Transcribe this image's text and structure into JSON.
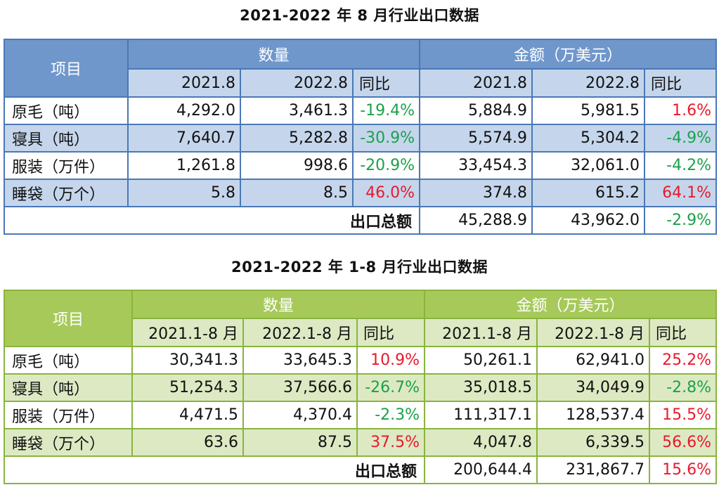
{
  "table1": {
    "title": "2021-2022 年 8 月行业出口数据",
    "header": {
      "item": "项目",
      "quantity": "数量",
      "amount": "金额（万美元）",
      "cols": [
        "2021.8",
        "2022.8",
        "同比",
        "2021.8",
        "2022.8",
        "同比"
      ]
    },
    "rows": [
      {
        "label": "原毛（吨）",
        "q1": "4,292.0",
        "q2": "3,461.3",
        "qy": "-19.4%",
        "a1": "5,884.9",
        "a2": "5,981.5",
        "ay": "1.6%"
      },
      {
        "label": "寝具（吨）",
        "q1": "7,640.7",
        "q2": "5,282.8",
        "qy": "-30.9%",
        "a1": "5,574.9",
        "a2": "5,304.2",
        "ay": "-4.9%"
      },
      {
        "label": "服装（万件）",
        "q1": "1,261.8",
        "q2": "998.6",
        "qy": "-20.9%",
        "a1": "33,454.3",
        "a2": "32,061.0",
        "ay": "-4.2%"
      },
      {
        "label": "睡袋（万个）",
        "q1": "5.8",
        "q2": "8.5",
        "qy": "46.0%",
        "a1": "374.8",
        "a2": "615.2",
        "ay": "64.1%"
      }
    ],
    "total": {
      "label": "出口总额",
      "a1": "45,288.9",
      "a2": "43,962.0",
      "ay": "-2.9%"
    }
  },
  "table2": {
    "title": "2021-2022 年 1-8 月行业出口数据",
    "header": {
      "item": "项目",
      "quantity": "数量",
      "amount": "金额（万美元）",
      "cols": [
        "2021.1-8 月",
        "2022.1-8 月",
        "同比",
        "2021.1-8 月",
        "2022.1-8 月",
        "同比"
      ]
    },
    "rows": [
      {
        "label": "原毛（吨）",
        "q1": "30,341.3",
        "q2": "33,645.3",
        "qy": "10.9%",
        "a1": "50,261.1",
        "a2": "62,941.0",
        "ay": "25.2%"
      },
      {
        "label": "寝具（吨）",
        "q1": "51,254.3",
        "q2": "37,566.6",
        "qy": "-26.7%",
        "a1": "35,018.5",
        "a2": "34,049.9",
        "ay": "-2.8%"
      },
      {
        "label": "服装（万件）",
        "q1": "4,471.5",
        "q2": "4,370.4",
        "qy": "-2.3%",
        "a1": "111,317.1",
        "a2": "128,537.4",
        "ay": "15.5%"
      },
      {
        "label": "睡袋（万个）",
        "q1": "63.6",
        "q2": "87.5",
        "qy": "37.5%",
        "a1": "4,047.8",
        "a2": "6,339.5",
        "ay": "56.6%"
      }
    ],
    "total": {
      "label": "出口总额",
      "a1": "200,644.4",
      "a2": "231,867.7",
      "ay": "15.6%"
    }
  },
  "colors": {
    "blue_header": "#6f97cc",
    "blue_band": "#c5d6ec",
    "green_header": "#a6c95a",
    "green_band": "#dde9c3",
    "negative": "#1aa14a",
    "positive": "#e8192c"
  }
}
